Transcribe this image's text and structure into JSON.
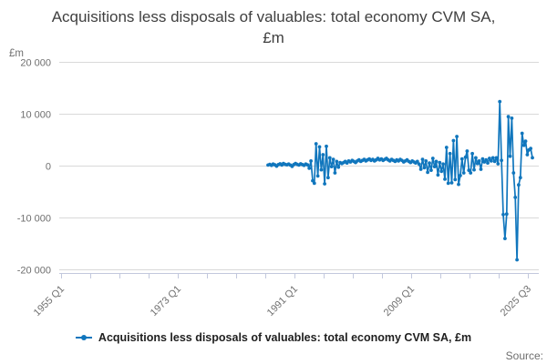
{
  "title": "Acquisitions less disposals of valuables: total economy CVM SA, £m",
  "unit_label": "£m",
  "source_label": "Source:",
  "legend": {
    "label": "Acquisitions less disposals of valuables: total economy CVM SA, £m"
  },
  "colors": {
    "line": "#1076bd",
    "grid": "#d9d9d9",
    "axis": "#c2c8dd",
    "muted_text": "#6f6f6f",
    "title_text": "#3f3f3f"
  },
  "chart_data": {
    "type": "line",
    "title": "Acquisitions less disposals of valuables: total economy CVM SA, £m",
    "ylabel": "£m",
    "ylim": [
      -20000,
      20000
    ],
    "grid": "horizontal",
    "legend_position": "bottom",
    "y_ticks": [
      {
        "value": 20000,
        "label": "20 000"
      },
      {
        "value": 10000,
        "label": "10 000"
      },
      {
        "value": 0,
        "label": "0"
      },
      {
        "value": -10000,
        "label": "-10 000"
      },
      {
        "value": -20000,
        "label": "-20 000"
      }
    ],
    "x_axis": {
      "tick_count": 17,
      "range_start": "1955 Q1",
      "range_end": "2025 Q3",
      "labels": [
        {
          "text": "1955 Q1",
          "tick_index": 0
        },
        {
          "text": "1973 Q1",
          "tick_index": 4
        },
        {
          "text": "1991 Q1",
          "tick_index": 8
        },
        {
          "text": "2009 Q1",
          "tick_index": 12
        },
        {
          "text": "2025 Q3",
          "tick_index": 16
        }
      ]
    },
    "series": [
      {
        "name": "Acquisitions less disposals of valuables: total economy CVM SA, £m",
        "color": "#1076bd",
        "frequency": "quarterly",
        "x_first_point": "1987 Q1",
        "x_last_point": "2025 Q3",
        "values": [
          100,
          250,
          50,
          300,
          150,
          -100,
          200,
          350,
          100,
          400,
          250,
          150,
          300,
          100,
          -150,
          200,
          400,
          250,
          100,
          350,
          200,
          50,
          300,
          150,
          -500,
          900,
          -2900,
          -3400,
          4200,
          -2000,
          3600,
          -800,
          2100,
          -3500,
          3700,
          -2300,
          1500,
          -200,
          1200,
          -1400,
          800,
          -300,
          600,
          400,
          600,
          800,
          500,
          900,
          700,
          1000,
          800,
          600,
          900,
          1100,
          800,
          1000,
          1200,
          900,
          1100,
          1300,
          1000,
          1200,
          900,
          1100,
          1400,
          1100,
          1300,
          1000,
          1200,
          1400,
          1100,
          900,
          1200,
          1000,
          800,
          1100,
          900,
          1200,
          1000,
          700,
          900,
          1100,
          800,
          600,
          900,
          700,
          500,
          800,
          300,
          -700,
          1200,
          -400,
          900,
          -1300,
          500,
          -900,
          1400,
          -200,
          800,
          -1800,
          600,
          -1100,
          300,
          -2600,
          3500,
          -3400,
          2300,
          -3300,
          4800,
          -2700,
          5600,
          -3600,
          -1900,
          1300,
          -1400,
          1600,
          2800,
          -900,
          -1400,
          2300,
          -800,
          1500,
          400,
          900,
          -700,
          1300,
          700,
          1100,
          500,
          1400,
          900,
          1500,
          800,
          1500,
          350,
          12300,
          1000,
          -9400,
          -14000,
          -9300,
          9400,
          1800,
          9100,
          -1400,
          -6100,
          -18100,
          -3700,
          -2300,
          6200,
          3900,
          4700,
          2100,
          3000,
          3300,
          1500
        ]
      }
    ]
  }
}
